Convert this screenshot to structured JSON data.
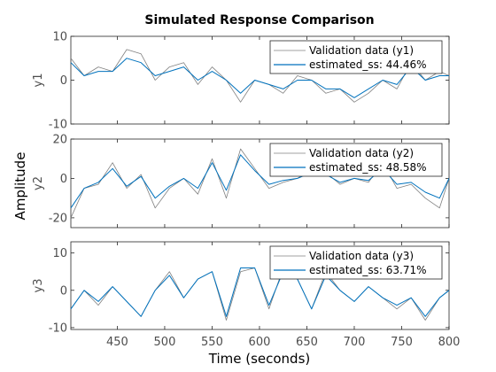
{
  "chart_data": {
    "type": "line",
    "title": "Simulated Response Comparison",
    "xlabel": "Time (seconds)",
    "ylabel": "Amplitude",
    "xlim": [
      401,
      800
    ],
    "xticks": [
      450,
      500,
      550,
      600,
      650,
      700,
      750,
      800
    ],
    "grid": false,
    "legend_placement": "top-right",
    "colors": {
      "validation": "#808080",
      "estimated": "#0072bd"
    },
    "subplots": [
      {
        "ylabel": "y1",
        "ylim": [
          -10,
          10
        ],
        "yticks": [
          -10,
          0,
          10
        ],
        "x": [
          401,
          415,
          430,
          445,
          460,
          475,
          490,
          505,
          520,
          535,
          550,
          565,
          580,
          595,
          610,
          625,
          640,
          655,
          670,
          685,
          700,
          715,
          730,
          745,
          760,
          775,
          790,
          800
        ],
        "series": [
          {
            "name": "Validation data (y1)",
            "values": [
              5,
              1,
              3,
              2,
              7,
              6,
              0,
              3,
              4,
              -1,
              3,
              0,
              -5,
              0,
              -1,
              -3,
              1,
              0,
              -3,
              -2,
              -5,
              -3,
              0,
              -2,
              4,
              0,
              2,
              1
            ]
          },
          {
            "name": "estimated_ss: 44.46%",
            "values": [
              4,
              1,
              2,
              2,
              5,
              4,
              1,
              2,
              3,
              0,
              2,
              0,
              -3,
              0,
              -1,
              -2,
              0,
              0,
              -2,
              -2,
              -4,
              -2,
              0,
              -1,
              3,
              0,
              1,
              1
            ]
          }
        ]
      },
      {
        "ylabel": "y2",
        "ylim": [
          -25,
          20
        ],
        "yticks": [
          -20,
          0,
          20
        ],
        "x": [
          401,
          415,
          430,
          445,
          460,
          475,
          490,
          505,
          520,
          535,
          550,
          565,
          580,
          595,
          610,
          625,
          640,
          655,
          670,
          685,
          700,
          715,
          730,
          745,
          760,
          775,
          790,
          800
        ],
        "series": [
          {
            "name": "Validation data (y2)",
            "values": [
              -20,
              -5,
              -3,
              8,
              -5,
              2,
              -15,
              -5,
              0,
              -8,
              10,
              -10,
              15,
              5,
              -5,
              -2,
              0,
              5,
              3,
              -3,
              0,
              -2,
              8,
              -5,
              -3,
              -10,
              -15,
              0
            ]
          },
          {
            "name": "estimated_ss: 48.58%",
            "values": [
              -15,
              -5,
              -2,
              5,
              -4,
              1,
              -10,
              -4,
              0,
              -5,
              8,
              -6,
              12,
              4,
              -3,
              -1,
              0,
              3,
              2,
              -2,
              0,
              -1,
              5,
              -3,
              -2,
              -7,
              -10,
              0
            ]
          }
        ]
      },
      {
        "ylabel": "y3",
        "ylim": [
          -10.5,
          13
        ],
        "yticks": [
          -10,
          0,
          10
        ],
        "x": [
          401,
          415,
          430,
          445,
          460,
          475,
          490,
          505,
          520,
          535,
          550,
          565,
          580,
          595,
          610,
          625,
          640,
          655,
          670,
          685,
          700,
          715,
          730,
          745,
          760,
          775,
          790,
          800
        ],
        "series": [
          {
            "name": "Validation data (y3)",
            "values": [
              -5,
              0,
              -4,
              1,
              -3,
              -7,
              0,
              5,
              -2,
              3,
              5,
              -8,
              5,
              6,
              -5,
              6,
              3,
              -5,
              5,
              0,
              -3,
              1,
              -2,
              -5,
              -2,
              -8,
              -2,
              0
            ]
          },
          {
            "name": "estimated_ss: 63.71%",
            "values": [
              -5,
              0,
              -3,
              1,
              -3,
              -7,
              0,
              4,
              -2,
              3,
              5,
              -7,
              6,
              6,
              -4,
              5,
              3,
              -5,
              4,
              0,
              -3,
              1,
              -2,
              -4,
              -2,
              -7,
              -2,
              0
            ]
          }
        ]
      }
    ]
  }
}
